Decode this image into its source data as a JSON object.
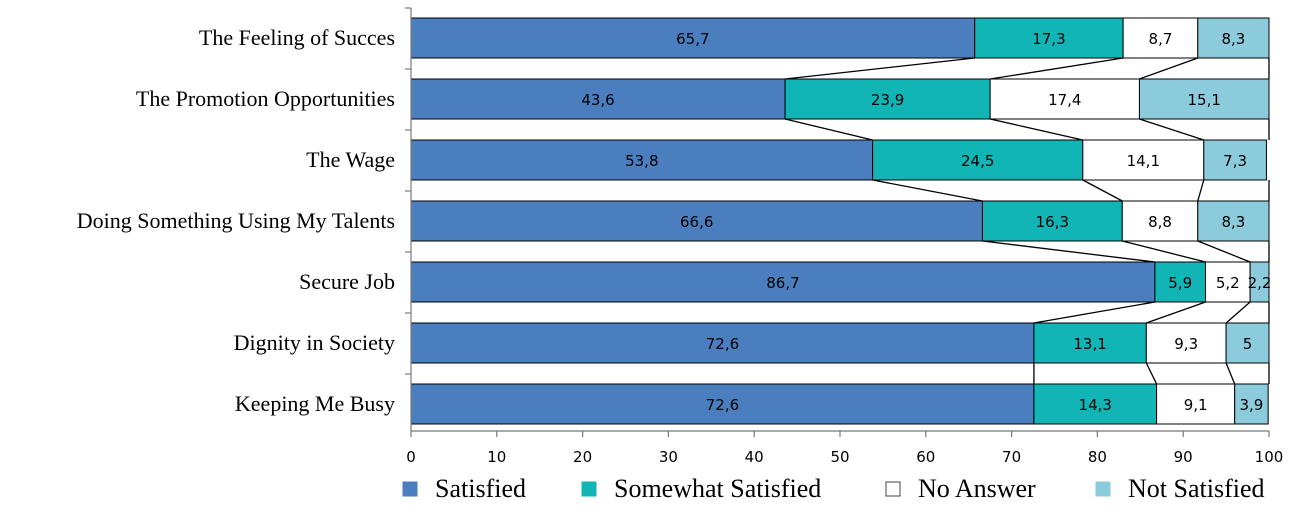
{
  "chart_data": {
    "type": "bar",
    "orientation": "horizontal",
    "stacked": true,
    "categories": [
      "The Feeling of Succes",
      "The Promotion Opportunities",
      "The Wage",
      "Doing Something Using My Talents",
      "Secure Job",
      "Dignity in Society",
      "Keeping Me Busy"
    ],
    "series": [
      {
        "name": "Satisfied",
        "color": "#4a7ebf",
        "values": [
          65.7,
          43.6,
          53.8,
          66.6,
          86.7,
          72.6,
          72.6
        ],
        "labels": [
          "65,7",
          "43,6",
          "53,8",
          "66,6",
          "86,7",
          "72,6",
          "72,6"
        ]
      },
      {
        "name": "Somewhat Satisfied",
        "color": "#12b5b5",
        "values": [
          17.3,
          23.9,
          24.5,
          16.3,
          5.9,
          13.1,
          14.3
        ],
        "labels": [
          "17,3",
          "23,9",
          "24,5",
          "16,3",
          "5,9",
          "13,1",
          "14,3"
        ]
      },
      {
        "name": "No Answer",
        "color": "#ffffff",
        "values": [
          8.7,
          17.4,
          14.1,
          8.8,
          5.2,
          9.3,
          9.1
        ],
        "labels": [
          "8,7",
          "17,4",
          "14,1",
          "8,8",
          "5,2",
          "9,3",
          "9,1"
        ]
      },
      {
        "name": "Not Satisfied",
        "color": "#8ccbdb",
        "values": [
          8.3,
          15.1,
          7.3,
          8.3,
          2.2,
          5,
          3.9
        ],
        "labels": [
          "8,3",
          "15,1",
          "7,3",
          "8,3",
          "2,2",
          "5",
          "3,9"
        ]
      }
    ],
    "xlim": [
      0,
      100
    ],
    "xticks": [
      0,
      10,
      20,
      30,
      40,
      50,
      60,
      70,
      80,
      90,
      100
    ],
    "series_lines": true,
    "legend_position": "bottom",
    "grid": false
  }
}
